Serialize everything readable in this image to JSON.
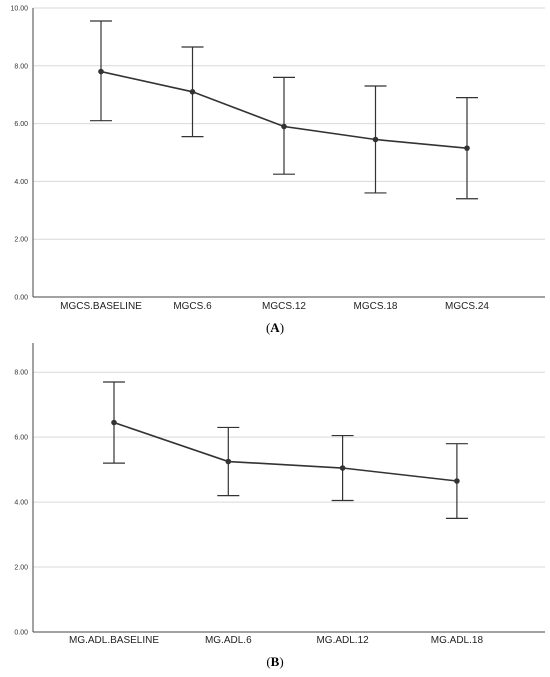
{
  "chart_data": [
    {
      "type": "line",
      "panel_label": "A",
      "categories": [
        "MGCS.BASELINE",
        "MGCS.6",
        "MGCS.12",
        "MGCS.18",
        "MGCS.24"
      ],
      "values": [
        7.8,
        7.1,
        5.9,
        5.45,
        5.15
      ],
      "error_low": [
        6.1,
        5.55,
        4.25,
        3.6,
        3.4
      ],
      "error_high": [
        9.55,
        8.65,
        7.6,
        7.3,
        6.9
      ],
      "ylim": [
        0,
        10
      ],
      "yticks": [
        "0.00",
        "2.00",
        "4.00",
        "6.00",
        "8.00",
        "10.00"
      ],
      "ytick_values": [
        0,
        2,
        4,
        6,
        8,
        10
      ],
      "grid": true,
      "title": "",
      "xlabel": "",
      "ylabel": ""
    },
    {
      "type": "line",
      "panel_label": "B",
      "categories": [
        "MG.ADL.BASELINE",
        "MG.ADL.6",
        "MG.ADL.12",
        "MG.ADL.18"
      ],
      "values": [
        6.45,
        5.25,
        5.05,
        4.65
      ],
      "error_low": [
        5.2,
        4.2,
        4.05,
        3.5
      ],
      "error_high": [
        7.7,
        6.3,
        6.05,
        5.8
      ],
      "ylim": [
        0,
        8.9
      ],
      "yticks": [
        "0.00",
        "2.00",
        "4.00",
        "6.00",
        "8.00"
      ],
      "ytick_values": [
        0,
        2,
        4,
        6,
        8
      ],
      "grid": true,
      "title": "",
      "xlabel": "",
      "ylabel": ""
    }
  ],
  "colors": {
    "line": "#333333",
    "grid": "#d9d9d9",
    "axis": "#444444"
  }
}
